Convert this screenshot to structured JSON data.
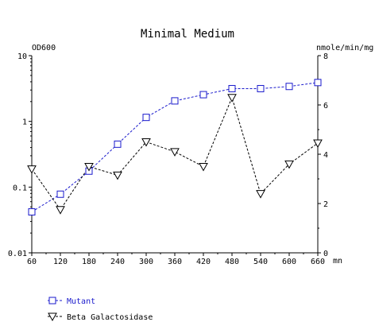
{
  "chart_data": {
    "type": "line",
    "title": "Minimal Medium",
    "left_axis_label": "OD600",
    "right_axis_label": "nmole/min/mg",
    "x_unit_label": "mn",
    "x": [
      60,
      120,
      180,
      240,
      300,
      360,
      420,
      480,
      540,
      600,
      660
    ],
    "x_ticks": [
      "60",
      "120",
      "180",
      "240",
      "300",
      "360",
      "420",
      "480",
      "540",
      "600",
      "660"
    ],
    "xlim": [
      60,
      660
    ],
    "left_axis": {
      "scale": "log",
      "ylim": [
        0.01,
        10
      ],
      "ticks": [
        "10",
        "1",
        "0.1",
        "0.01"
      ]
    },
    "right_axis": {
      "scale": "linear",
      "ylim": [
        0,
        8
      ],
      "ticks": [
        "8",
        "6",
        "4",
        "2",
        "0"
      ]
    },
    "series": [
      {
        "name": "Mutant",
        "axis": "left",
        "color": "#1a1acc",
        "marker": "square",
        "values": [
          0.042,
          0.078,
          0.175,
          0.45,
          1.15,
          2.05,
          2.55,
          3.15,
          3.15,
          3.4,
          3.9
        ]
      },
      {
        "name": "Beta Galactosidase",
        "axis": "right",
        "color": "#000000",
        "marker": "triangle-down",
        "values": [
          3.4,
          1.75,
          3.5,
          3.15,
          4.5,
          4.1,
          3.5,
          6.3,
          2.4,
          3.6,
          4.45
        ]
      }
    ],
    "legend_position": "bottom-left",
    "grid": false
  }
}
